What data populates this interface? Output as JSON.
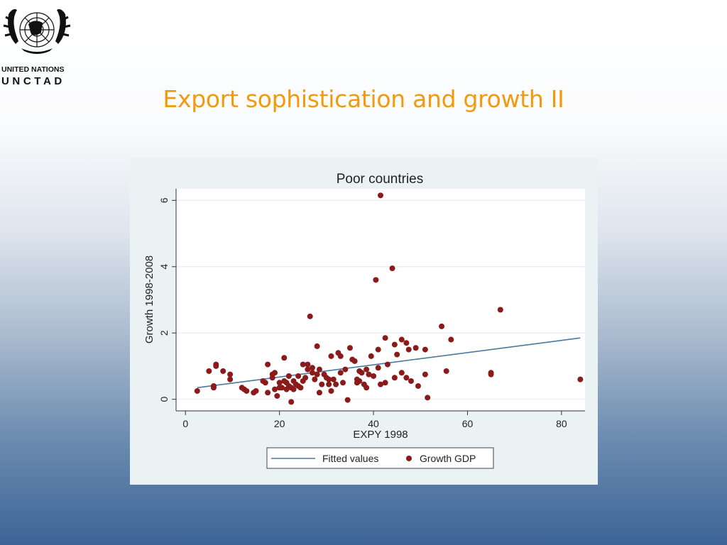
{
  "logo": {
    "line1": "UNITED NATIONS",
    "line2": "UNCTAD"
  },
  "slide_title": "Export sophistication and growth II",
  "colors": {
    "title": "#f29a0e",
    "fitted_line": "#4a79a0",
    "points": "#8b1a1a",
    "panel_bg": "#eaf2f3"
  },
  "chart_data": {
    "type": "scatter",
    "title": "Poor countries",
    "xlabel": "EXPY 1998",
    "ylabel": "Growth 1998-2008",
    "xlim": [
      -2,
      85
    ],
    "ylim": [
      -0.35,
      6.35
    ],
    "xticks": [
      0,
      20,
      40,
      60,
      80
    ],
    "yticks": [
      0,
      2,
      4,
      6
    ],
    "grid": "horizontal",
    "legend_position": "bottom",
    "legend": [
      "Fitted values",
      "Growth GDP"
    ],
    "fitted_line": {
      "x": [
        2.5,
        84
      ],
      "y": [
        0.35,
        1.85
      ]
    },
    "series": [
      {
        "name": "Growth GDP",
        "points": [
          [
            2.5,
            0.25
          ],
          [
            5,
            0.85
          ],
          [
            6,
            0.4
          ],
          [
            6,
            0.35
          ],
          [
            6.5,
            1.05
          ],
          [
            6.5,
            1.0
          ],
          [
            8,
            0.85
          ],
          [
            9.5,
            0.6
          ],
          [
            9.5,
            0.75
          ],
          [
            12,
            0.35
          ],
          [
            12.5,
            0.3
          ],
          [
            13,
            0.25
          ],
          [
            14.5,
            0.2
          ],
          [
            15,
            0.25
          ],
          [
            16.5,
            0.55
          ],
          [
            17,
            0.5
          ],
          [
            17.5,
            1.05
          ],
          [
            17.5,
            0.2
          ],
          [
            18.5,
            0.75
          ],
          [
            18.5,
            0.65
          ],
          [
            19,
            0.8
          ],
          [
            19,
            0.3
          ],
          [
            19.5,
            0.1
          ],
          [
            20,
            0.5
          ],
          [
            20,
            0.35
          ],
          [
            20.5,
            0.35
          ],
          [
            21,
            1.25
          ],
          [
            21,
            0.55
          ],
          [
            21.5,
            0.3
          ],
          [
            21.5,
            0.5
          ],
          [
            22,
            0.7
          ],
          [
            22,
            0.4
          ],
          [
            22.5,
            -0.08
          ],
          [
            22.5,
            0.35
          ],
          [
            23,
            0.3
          ],
          [
            23,
            0.55
          ],
          [
            23.5,
            0.45
          ],
          [
            24,
            0.7
          ],
          [
            24,
            0.4
          ],
          [
            24.5,
            0.35
          ],
          [
            25,
            0.55
          ],
          [
            25,
            1.05
          ],
          [
            25.5,
            0.65
          ],
          [
            26,
            0.9
          ],
          [
            26,
            1.05
          ],
          [
            26.5,
            2.5
          ],
          [
            27,
            0.8
          ],
          [
            27,
            0.95
          ],
          [
            27.5,
            0.6
          ],
          [
            28,
            0.75
          ],
          [
            28,
            1.6
          ],
          [
            28.5,
            0.2
          ],
          [
            28.5,
            0.9
          ],
          [
            29,
            0.45
          ],
          [
            29.5,
            0.75
          ],
          [
            30,
            0.65
          ],
          [
            30.5,
            0.6
          ],
          [
            30.5,
            0.45
          ],
          [
            31,
            1.3
          ],
          [
            31,
            0.25
          ],
          [
            31.5,
            0.6
          ],
          [
            32,
            0.45
          ],
          [
            32.5,
            1.4
          ],
          [
            33,
            0.8
          ],
          [
            33,
            1.3
          ],
          [
            33.5,
            0.5
          ],
          [
            34,
            0.9
          ],
          [
            34.5,
            -0.02
          ],
          [
            35,
            1.55
          ],
          [
            35.5,
            1.2
          ],
          [
            36,
            1.15
          ],
          [
            36.5,
            0.6
          ],
          [
            36.5,
            0.5
          ],
          [
            37,
            0.85
          ],
          [
            37,
            0.55
          ],
          [
            37.5,
            0.8
          ],
          [
            38,
            0.45
          ],
          [
            38.5,
            0.9
          ],
          [
            38.5,
            0.35
          ],
          [
            39,
            0.75
          ],
          [
            39.5,
            1.3
          ],
          [
            40,
            0.7
          ],
          [
            40.5,
            3.6
          ],
          [
            41,
            0.95
          ],
          [
            41,
            1.5
          ],
          [
            41.5,
            0.45
          ],
          [
            41.5,
            6.15
          ],
          [
            42.5,
            1.85
          ],
          [
            42.5,
            0.5
          ],
          [
            43,
            1.05
          ],
          [
            44,
            3.95
          ],
          [
            44.5,
            1.65
          ],
          [
            44.5,
            0.65
          ],
          [
            45,
            1.35
          ],
          [
            46,
            1.8
          ],
          [
            46,
            0.8
          ],
          [
            47,
            0.65
          ],
          [
            47,
            1.7
          ],
          [
            47.5,
            1.5
          ],
          [
            48,
            0.55
          ],
          [
            49,
            1.55
          ],
          [
            49.5,
            0.4
          ],
          [
            51,
            0.75
          ],
          [
            51,
            1.5
          ],
          [
            51.5,
            0.05
          ],
          [
            54.5,
            2.2
          ],
          [
            55.5,
            0.85
          ],
          [
            56.5,
            1.8
          ],
          [
            65,
            0.8
          ],
          [
            65,
            0.75
          ],
          [
            67,
            2.7
          ],
          [
            84,
            0.6
          ]
        ]
      }
    ]
  }
}
